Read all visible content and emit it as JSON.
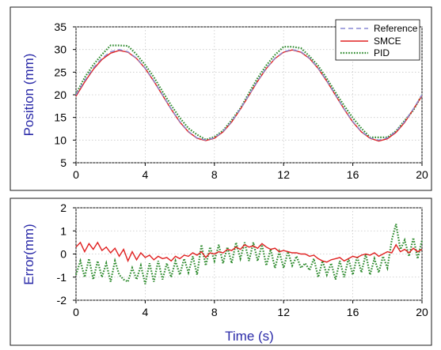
{
  "chart_data": [
    {
      "type": "line",
      "title": "",
      "xlabel": "",
      "ylabel": "Position (mm)",
      "xlim": [
        0,
        20
      ],
      "ylim": [
        5,
        35
      ],
      "xticks": [
        "0",
        "4",
        "8",
        "12",
        "16",
        "20"
      ],
      "yticks": [
        "5",
        "10",
        "15",
        "20",
        "25",
        "30",
        "35"
      ],
      "grid": true,
      "legend_position": "top-right",
      "series": [
        {
          "name": "Reference",
          "color": "#8a8ad6",
          "style": "dashed",
          "x": [
            0,
            0.5,
            1,
            1.5,
            2,
            2.5,
            3,
            3.5,
            4,
            4.5,
            5,
            5.5,
            6,
            6.5,
            7,
            7.5,
            8,
            8.5,
            9,
            9.5,
            10,
            10.5,
            11,
            11.5,
            12,
            12.5,
            13,
            13.5,
            14,
            14.5,
            15,
            15.5,
            16,
            16.5,
            17,
            17.5,
            18,
            18.5,
            19,
            19.5,
            20
          ],
          "y": [
            20,
            23.1,
            25.9,
            28.1,
            29.5,
            30,
            29.5,
            28.1,
            25.9,
            23.1,
            20,
            16.9,
            14.1,
            11.9,
            10.5,
            10,
            10.5,
            11.9,
            14.1,
            16.9,
            20,
            23.1,
            25.9,
            28.1,
            29.5,
            30,
            29.5,
            28.1,
            25.9,
            23.1,
            20,
            16.9,
            14.1,
            11.9,
            10.5,
            10,
            10.5,
            11.9,
            14.1,
            16.9,
            20
          ]
        },
        {
          "name": "SMCE",
          "color": "#e02020",
          "style": "solid",
          "x": [
            0,
            0.5,
            1,
            1.5,
            2,
            2.5,
            3,
            3.5,
            4,
            4.5,
            5,
            5.5,
            6,
            6.5,
            7,
            7.5,
            8,
            8.5,
            9,
            9.5,
            10,
            10.5,
            11,
            11.5,
            12,
            12.5,
            13,
            13.5,
            14,
            14.5,
            15,
            15.5,
            16,
            16.5,
            17,
            17.5,
            18,
            18.5,
            19,
            19.5,
            20
          ],
          "y": [
            19.7,
            22.8,
            25.6,
            27.8,
            29.2,
            29.8,
            29.4,
            28.0,
            25.8,
            23.0,
            19.9,
            16.8,
            14.0,
            11.8,
            10.4,
            9.9,
            10.4,
            11.8,
            14.0,
            16.8,
            19.9,
            23.0,
            25.8,
            28.0,
            29.4,
            29.9,
            29.4,
            28.0,
            25.8,
            23.0,
            19.9,
            16.8,
            14.0,
            11.8,
            10.4,
            9.8,
            10.3,
            11.7,
            13.9,
            16.8,
            19.8
          ]
        },
        {
          "name": "PID",
          "color": "#2e8b2e",
          "style": "dotted",
          "x": [
            0,
            0.5,
            1,
            1.5,
            2,
            2.5,
            3,
            3.5,
            4,
            4.5,
            5,
            5.5,
            6,
            6.5,
            7,
            7.5,
            8,
            8.5,
            9,
            9.5,
            10,
            10.5,
            11,
            11.5,
            12,
            12.5,
            13,
            13.5,
            14,
            14.5,
            15,
            15.5,
            16,
            16.5,
            17,
            17.5,
            18,
            18.5,
            19,
            19.5,
            20
          ],
          "y": [
            20.2,
            23.8,
            26.6,
            28.9,
            30.9,
            30.9,
            30.8,
            28.9,
            26.6,
            23.9,
            20.7,
            17.7,
            14.9,
            12.6,
            11.2,
            10.1,
            10.7,
            12.1,
            14.4,
            17.0,
            20.4,
            23.7,
            26.5,
            28.8,
            30.6,
            30.6,
            30.3,
            28.5,
            26.4,
            23.6,
            20.5,
            17.6,
            14.9,
            12.6,
            10.6,
            10.6,
            10.6,
            12.0,
            14.3,
            16.6,
            20.0
          ]
        }
      ]
    },
    {
      "type": "line",
      "title": "",
      "xlabel": "Time (s)",
      "ylabel": "Error(mm)",
      "xlim": [
        0,
        20
      ],
      "ylim": [
        -2,
        2
      ],
      "xticks": [
        "0",
        "4",
        "8",
        "12",
        "16",
        "20"
      ],
      "yticks": [
        "-2",
        "-1",
        "0",
        "1",
        "2"
      ],
      "grid": true,
      "series": [
        {
          "name": "SMCE",
          "color": "#e02020",
          "style": "solid",
          "x": [
            0,
            0.25,
            0.5,
            0.75,
            1,
            1.25,
            1.5,
            1.75,
            2,
            2.25,
            2.5,
            2.75,
            3,
            3.25,
            3.5,
            3.75,
            4,
            4.25,
            4.5,
            4.75,
            5,
            5.25,
            5.5,
            5.75,
            6,
            6.25,
            6.5,
            6.75,
            7,
            7.25,
            7.5,
            7.75,
            8,
            8.25,
            8.5,
            8.75,
            9,
            9.25,
            9.5,
            9.75,
            10,
            10.25,
            10.5,
            10.75,
            11,
            11.25,
            11.5,
            11.75,
            12,
            12.25,
            12.5,
            12.75,
            13,
            13.25,
            13.5,
            13.75,
            14,
            14.25,
            14.5,
            14.75,
            15,
            15.25,
            15.5,
            15.75,
            16,
            16.25,
            16.5,
            16.75,
            17,
            17.25,
            17.5,
            17.75,
            18,
            18.25,
            18.5,
            18.75,
            19,
            19.25,
            19.5,
            19.75,
            20
          ],
          "y": [
            0.3,
            0.5,
            0.1,
            0.45,
            0.2,
            0.5,
            0.15,
            0.3,
            0.05,
            0.25,
            -0.1,
            0.2,
            -0.3,
            0.1,
            -0.25,
            0.05,
            -0.15,
            -0.05,
            -0.25,
            -0.1,
            -0.2,
            -0.15,
            -0.3,
            -0.1,
            -0.2,
            -0.05,
            -0.1,
            0.05,
            -0.05,
            0.1,
            -0.15,
            0.05,
            0,
            0.1,
            0.05,
            0.2,
            0.15,
            0.3,
            0.2,
            0.4,
            0.3,
            0.35,
            0.25,
            0.45,
            0.3,
            0.2,
            0.25,
            0.1,
            0.15,
            0.1,
            0.05,
            0.05,
            0,
            0,
            -0.1,
            -0.05,
            -0.2,
            -0.3,
            -0.35,
            -0.25,
            -0.2,
            -0.15,
            -0.3,
            -0.2,
            -0.1,
            -0.15,
            -0.05,
            0,
            -0.05,
            0.05,
            -0.1,
            0,
            0.1,
            0.05,
            0.4,
            0.1,
            0.2,
            0.05,
            0.25,
            0.1,
            0.2
          ]
        },
        {
          "name": "PID",
          "color": "#2e8b2e",
          "style": "dotted",
          "x": [
            0,
            0.25,
            0.5,
            0.75,
            1,
            1.25,
            1.5,
            1.75,
            2,
            2.25,
            2.5,
            2.75,
            3,
            3.25,
            3.5,
            3.75,
            4,
            4.25,
            4.5,
            4.75,
            5,
            5.25,
            5.5,
            5.75,
            6,
            6.25,
            6.5,
            6.75,
            7,
            7.25,
            7.5,
            7.75,
            8,
            8.25,
            8.5,
            8.75,
            9,
            9.25,
            9.5,
            9.75,
            10,
            10.25,
            10.5,
            10.75,
            11,
            11.25,
            11.5,
            11.75,
            12,
            12.25,
            12.5,
            12.75,
            13,
            13.25,
            13.5,
            13.75,
            14,
            14.25,
            14.5,
            14.75,
            15,
            15.25,
            15.5,
            15.75,
            16,
            16.25,
            16.5,
            16.75,
            17,
            17.25,
            17.5,
            17.75,
            18,
            18.25,
            18.5,
            18.75,
            19,
            19.25,
            19.5,
            19.75,
            20
          ],
          "y": [
            -0.9,
            -0.3,
            -1.0,
            -0.2,
            -1.1,
            -0.3,
            -1.0,
            -0.4,
            -1.2,
            -0.3,
            -0.9,
            -1.1,
            -1.2,
            -0.6,
            -1.1,
            -0.5,
            -1.3,
            -0.4,
            -1.2,
            -0.3,
            -1.1,
            -0.4,
            -1.0,
            -0.3,
            -0.9,
            -0.2,
            -0.8,
            -0.1,
            -0.9,
            0.4,
            -0.5,
            0.3,
            -0.3,
            0.4,
            -0.4,
            0.3,
            -0.4,
            0.5,
            -0.2,
            0.5,
            -0.3,
            0.5,
            -0.3,
            0.4,
            -0.5,
            0.2,
            -0.6,
            0.1,
            -0.6,
            0.1,
            -0.5,
            -0.1,
            -0.6,
            -0.4,
            -0.7,
            -0.2,
            -1.0,
            -0.3,
            -0.9,
            -0.4,
            -1.1,
            -0.3,
            -1.0,
            -0.2,
            -0.9,
            -0.1,
            -0.8,
            0,
            -0.9,
            -0.2,
            -0.8,
            -0.1,
            -0.6,
            0.6,
            1.3,
            0.2,
            0.6,
            -0.1,
            0.7,
            -0.2,
            0.6
          ]
        }
      ]
    }
  ]
}
